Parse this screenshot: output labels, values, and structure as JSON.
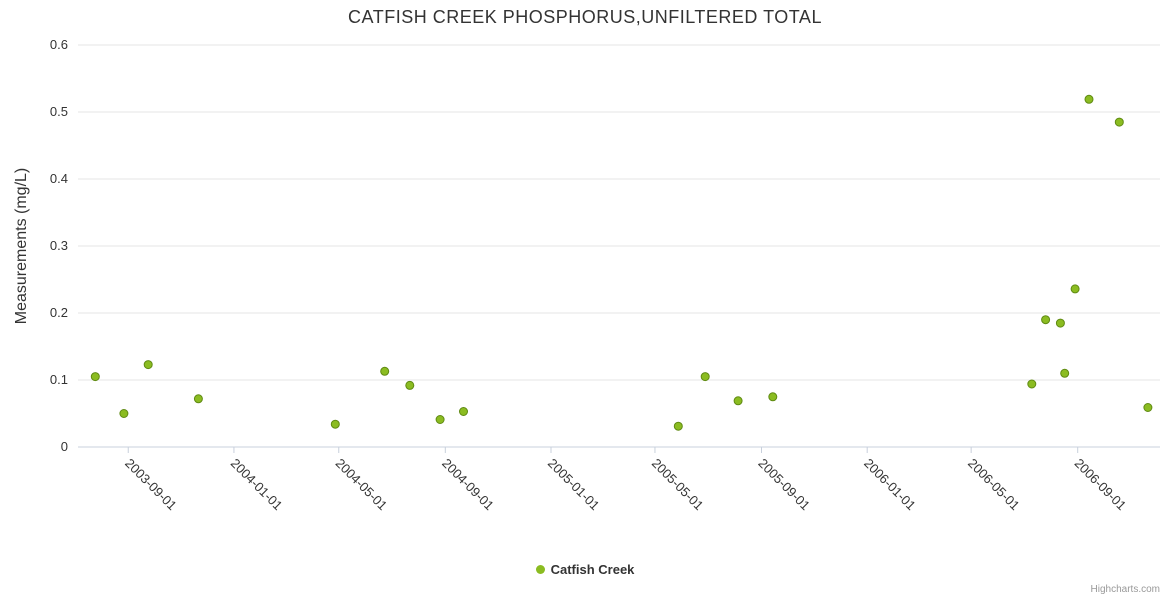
{
  "credits": {
    "label": "Highcharts.com"
  },
  "chart_data": {
    "type": "scatter",
    "title": "CATFISH CREEK PHOSPHORUS,UNFILTERED TOTAL",
    "xlabel": "",
    "ylabel": "Measurements (mg/L)",
    "ylim": [
      0,
      0.6
    ],
    "y_ticks": [
      0,
      0.1,
      0.2,
      0.3,
      0.4,
      0.5,
      0.6
    ],
    "xlim": [
      "2003-07-05",
      "2006-12-05"
    ],
    "x_ticks": [
      "2003-09-01",
      "2004-01-01",
      "2004-05-01",
      "2004-09-01",
      "2005-01-01",
      "2005-05-01",
      "2005-09-01",
      "2006-01-01",
      "2006-05-01",
      "2006-09-01"
    ],
    "grid": true,
    "legend_position": "bottom",
    "colors": {
      "series_green": "#8bbc21",
      "series_green_stroke": "#5f8a12",
      "gridline": "#e6e6e6",
      "axis_line": "#c8d0dc",
      "tick_mark": "#c8d0dc"
    },
    "series": [
      {
        "name": "Catfish Creek",
        "color": "#8bbc21",
        "points": [
          {
            "x": "2003-07-25",
            "y": 0.105
          },
          {
            "x": "2003-08-27",
            "y": 0.05
          },
          {
            "x": "2003-09-24",
            "y": 0.123
          },
          {
            "x": "2003-11-21",
            "y": 0.072
          },
          {
            "x": "2004-04-27",
            "y": 0.034
          },
          {
            "x": "2004-06-23",
            "y": 0.113
          },
          {
            "x": "2004-07-22",
            "y": 0.092
          },
          {
            "x": "2004-08-26",
            "y": 0.041
          },
          {
            "x": "2004-09-22",
            "y": 0.053
          },
          {
            "x": "2005-05-28",
            "y": 0.031
          },
          {
            "x": "2005-06-28",
            "y": 0.105
          },
          {
            "x": "2005-08-05",
            "y": 0.069
          },
          {
            "x": "2005-09-14",
            "y": 0.075
          },
          {
            "x": "2006-07-10",
            "y": 0.094
          },
          {
            "x": "2006-07-26",
            "y": 0.19
          },
          {
            "x": "2006-08-12",
            "y": 0.185
          },
          {
            "x": "2006-08-17",
            "y": 0.11
          },
          {
            "x": "2006-08-29",
            "y": 0.236
          },
          {
            "x": "2006-09-14",
            "y": 0.519
          },
          {
            "x": "2006-10-19",
            "y": 0.485
          },
          {
            "x": "2006-11-21",
            "y": 0.059
          }
        ]
      }
    ]
  }
}
